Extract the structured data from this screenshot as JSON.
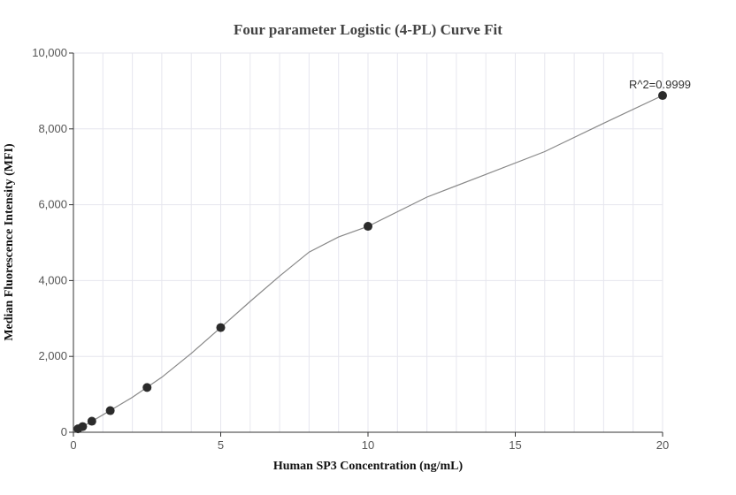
{
  "chart_data": {
    "type": "scatter",
    "title": "Four parameter Logistic (4-PL) Curve Fit",
    "xlabel": "Human SP3 Concentration (ng/mL)",
    "ylabel": "Median Fluorescence Intensity (MFI)",
    "xlim": [
      0,
      20
    ],
    "ylim": [
      0,
      10000
    ],
    "x_ticks": [
      0,
      5,
      10,
      15,
      20
    ],
    "x_tick_labels": [
      "0",
      "5",
      "10",
      "15",
      "20"
    ],
    "y_ticks": [
      0,
      2000,
      4000,
      6000,
      8000,
      10000
    ],
    "y_tick_labels": [
      "0",
      "2,000",
      "4,000",
      "6,000",
      "8,000",
      "10,000"
    ],
    "grid": true,
    "series": [
      {
        "x": [
          0.156,
          0.3125,
          0.625,
          1.25,
          2.5,
          5,
          10,
          20
        ],
        "y": [
          90,
          150,
          290,
          570,
          1180,
          2760,
          5430,
          8880
        ]
      }
    ],
    "fit_curve": {
      "x": [
        0,
        0.5,
        1,
        2,
        3,
        4,
        5,
        6,
        7,
        8,
        9,
        10,
        12,
        14,
        16,
        18,
        20
      ],
      "y": [
        30,
        230,
        460,
        920,
        1450,
        2080,
        2760,
        3450,
        4120,
        4750,
        5150,
        5430,
        6200,
        6800,
        7400,
        8150,
        8880
      ]
    },
    "annotation": "R^2=0.9999",
    "colors": {
      "point": "#2b2b2b",
      "curve": "#888888",
      "grid": "#e6e6ee",
      "axis": "#333333"
    }
  }
}
